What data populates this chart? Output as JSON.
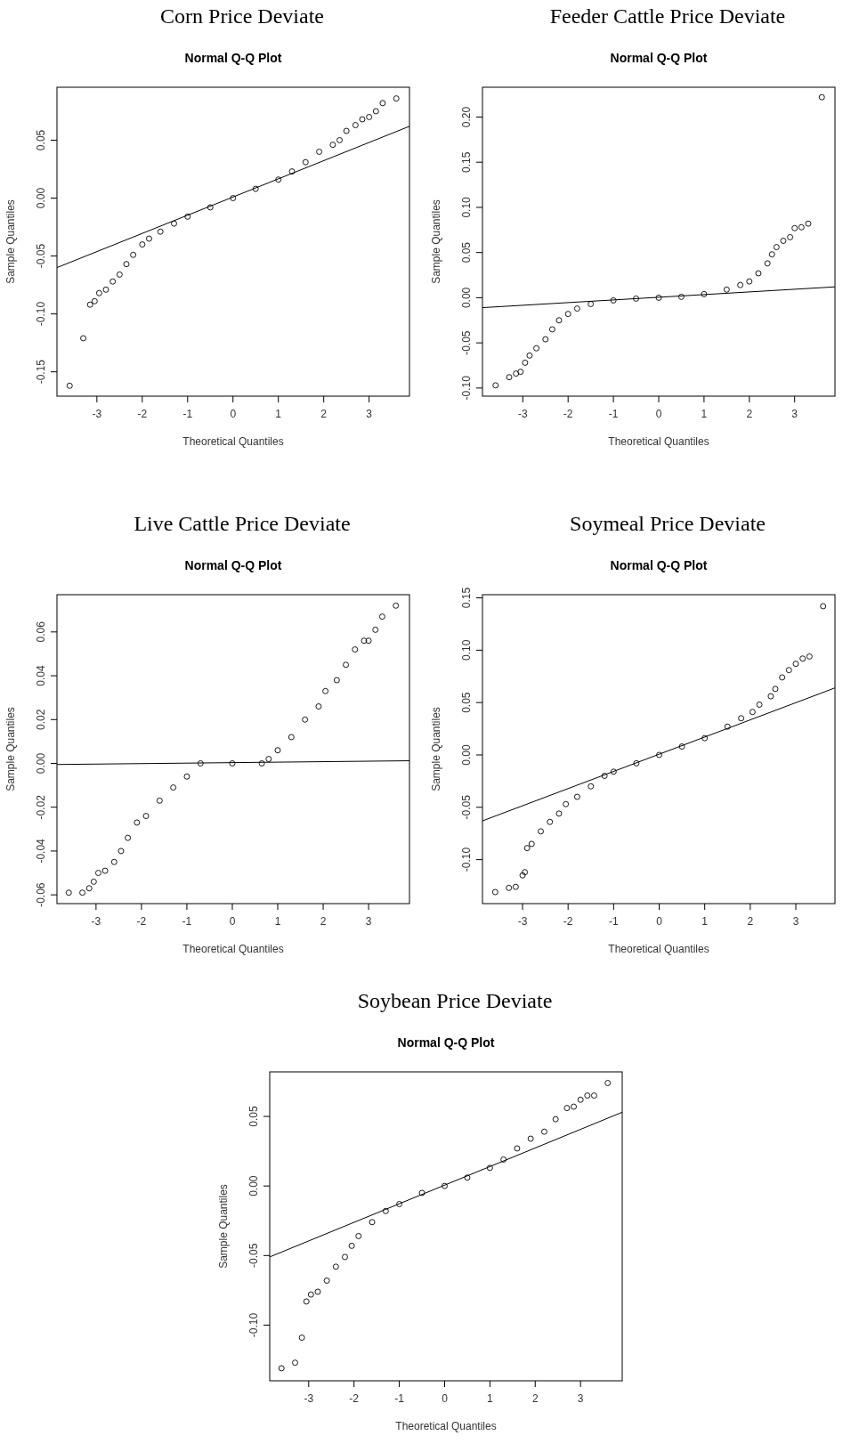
{
  "chart_data": [
    {
      "type": "scatter",
      "title": "Corn Price Deviate",
      "subtitle": "Normal Q-Q Plot",
      "xlabel": "Theoretical Quantiles",
      "ylabel": "Sample Quantiles",
      "xlim": [
        -3.88,
        3.89
      ],
      "ylim": [
        -0.171,
        0.0957
      ],
      "xticks": [
        -3,
        -2,
        -1,
        0,
        1,
        2,
        3
      ],
      "yticks": [
        {
          "value": -0.15,
          "label": "-0.15"
        },
        {
          "value": -0.1,
          "label": "-0.10"
        },
        {
          "value": -0.05,
          "label": "-0.05"
        },
        {
          "value": 0,
          "label": "0.00"
        },
        {
          "value": 0.05,
          "label": "0.05"
        }
      ],
      "series": [
        {
          "marker": "circle",
          "color": "#000000",
          "x": [
            -3.6,
            -3.3,
            -3.15,
            -3.05,
            -2.95,
            -2.8,
            -2.65,
            -2.5,
            -2.35,
            -2.2,
            -2.0,
            -1.85,
            -1.6,
            -1.3,
            -1,
            -0.5,
            0,
            0.5,
            1,
            1.3,
            1.6,
            1.9,
            2.2,
            2.35,
            2.5,
            2.7,
            2.85,
            3.0,
            3.15,
            3.3,
            3.6
          ],
          "values": [
            -0.162,
            -0.121,
            -0.092,
            -0.089,
            -0.082,
            -0.079,
            -0.072,
            -0.066,
            -0.057,
            -0.049,
            -0.04,
            -0.035,
            -0.029,
            -0.022,
            -0.016,
            -0.008,
            0,
            0.008,
            0.016,
            0.023,
            0.031,
            0.04,
            0.046,
            0.05,
            0.058,
            0.063,
            0.068,
            0.07,
            0.075,
            0.082,
            0.086
          ]
        },
        {
          "type": "line",
          "color": "#000000",
          "x": [
            -3.88,
            3.89
          ],
          "values": [
            -0.06,
            0.062
          ]
        }
      ]
    },
    {
      "type": "scatter",
      "title": "Feeder Cattle Price Deviate",
      "subtitle": "Normal Q-Q Plot",
      "xlabel": "Theoretical Quantiles",
      "ylabel": "Sample Quantiles",
      "xlim": [
        -3.89,
        3.89
      ],
      "ylim": [
        -0.109,
        0.233
      ],
      "xticks": [
        -3,
        -2,
        -1,
        0,
        1,
        2,
        3
      ],
      "yticks": [
        {
          "value": -0.1,
          "label": "-0.10"
        },
        {
          "value": -0.05,
          "label": "-0.05"
        },
        {
          "value": 0,
          "label": "0.00"
        },
        {
          "value": 0.05,
          "label": "0.05"
        },
        {
          "value": 0.1,
          "label": "0.10"
        },
        {
          "value": 0.15,
          "label": "0.15"
        },
        {
          "value": 0.2,
          "label": "0.20"
        }
      ],
      "series": [
        {
          "marker": "circle",
          "color": "#000000",
          "x": [
            -3.6,
            -3.3,
            -3.15,
            -3.05,
            -2.95,
            -2.85,
            -2.7,
            -2.5,
            -2.35,
            -2.2,
            -2,
            -1.8,
            -1.5,
            -1,
            -0.5,
            0,
            0.5,
            1,
            1.5,
            1.8,
            2,
            2.2,
            2.4,
            2.5,
            2.6,
            2.75,
            2.9,
            3.0,
            3.15,
            3.3,
            3.6
          ],
          "values": [
            -0.097,
            -0.088,
            -0.084,
            -0.082,
            -0.072,
            -0.064,
            -0.056,
            -0.046,
            -0.035,
            -0.025,
            -0.018,
            -0.012,
            -0.007,
            -0.003,
            -0.001,
            0,
            0.001,
            0.004,
            0.009,
            0.014,
            0.018,
            0.027,
            0.038,
            0.048,
            0.056,
            0.063,
            0.067,
            0.077,
            0.078,
            0.082,
            0.222
          ]
        },
        {
          "type": "line",
          "color": "#000000",
          "x": [
            -3.89,
            3.89
          ],
          "values": [
            -0.011,
            0.012
          ]
        }
      ]
    },
    {
      "type": "scatter",
      "title": "Live Cattle Price Deviate",
      "subtitle": "Normal Q-Q Plot",
      "xlabel": "Theoretical Quantiles",
      "ylabel": "Sample Quantiles",
      "xlim": [
        -3.86,
        3.9
      ],
      "ylim": [
        -0.064,
        0.077
      ],
      "xticks": [
        -3,
        -2,
        -1,
        0,
        1,
        2,
        3
      ],
      "yticks": [
        {
          "value": -0.06,
          "label": "-0.06"
        },
        {
          "value": -0.04,
          "label": "-0.04"
        },
        {
          "value": -0.02,
          "label": "-0.02"
        },
        {
          "value": 0,
          "label": "0.00"
        },
        {
          "value": 0.02,
          "label": "0.02"
        },
        {
          "value": 0.04,
          "label": "0.04"
        },
        {
          "value": 0.06,
          "label": "0.06"
        }
      ],
      "series": [
        {
          "marker": "circle",
          "color": "#000000",
          "x": [
            -3.6,
            -3.3,
            -3.15,
            -3.05,
            -2.95,
            -2.8,
            -2.6,
            -2.45,
            -2.3,
            -2.1,
            -1.9,
            -1.6,
            -1.3,
            -1,
            -0.7,
            0,
            0.65,
            0.8,
            1,
            1.3,
            1.6,
            1.9,
            2.05,
            2.3,
            2.5,
            2.7,
            2.9,
            3.0,
            3.15,
            3.3,
            3.6
          ],
          "values": [
            -0.059,
            -0.059,
            -0.057,
            -0.054,
            -0.05,
            -0.049,
            -0.045,
            -0.04,
            -0.034,
            -0.027,
            -0.024,
            -0.017,
            -0.011,
            -0.006,
            0,
            0,
            0,
            0.002,
            0.006,
            0.012,
            0.02,
            0.026,
            0.033,
            0.038,
            0.045,
            0.052,
            0.056,
            0.056,
            0.061,
            0.067,
            0.072
          ]
        },
        {
          "type": "line",
          "color": "#000000",
          "x": [
            -3.86,
            3.9
          ],
          "values": [
            -0.0005,
            0.0012
          ]
        }
      ]
    },
    {
      "type": "scatter",
      "title": "Soymeal Price Deviate",
      "subtitle": "Normal Q-Q Plot",
      "xlabel": "Theoretical Quantiles",
      "ylabel": "Sample Quantiles",
      "xlim": [
        -3.88,
        3.86
      ],
      "ylim": [
        -0.142,
        0.153
      ],
      "xticks": [
        -3,
        -2,
        -1,
        0,
        1,
        2,
        3
      ],
      "yticks": [
        {
          "value": -0.1,
          "label": "-0.10"
        },
        {
          "value": -0.05,
          "label": "-0.05"
        },
        {
          "value": 0,
          "label": "0.00"
        },
        {
          "value": 0.05,
          "label": "0.05"
        },
        {
          "value": 0.1,
          "label": "0.10"
        },
        {
          "value": 0.15,
          "label": "0.15"
        }
      ],
      "series": [
        {
          "marker": "circle",
          "color": "#000000",
          "x": [
            -3.6,
            -3.3,
            -3.15,
            -3.0,
            -2.95,
            -2.9,
            -2.8,
            -2.6,
            -2.4,
            -2.2,
            -2.05,
            -1.8,
            -1.5,
            -1.2,
            -1,
            -0.5,
            0,
            0.5,
            1,
            1.5,
            1.8,
            2.05,
            2.2,
            2.45,
            2.55,
            2.7,
            2.85,
            3.0,
            3.15,
            3.3,
            3.6
          ],
          "values": [
            -0.131,
            -0.127,
            -0.126,
            -0.115,
            -0.112,
            -0.089,
            -0.085,
            -0.073,
            -0.064,
            -0.056,
            -0.047,
            -0.04,
            -0.03,
            -0.02,
            -0.016,
            -0.008,
            0,
            0.008,
            0.016,
            0.027,
            0.035,
            0.041,
            0.048,
            0.056,
            0.063,
            0.074,
            0.081,
            0.087,
            0.092,
            0.094,
            0.142
          ]
        },
        {
          "type": "line",
          "color": "#000000",
          "x": [
            -3.88,
            3.86
          ],
          "values": [
            -0.063,
            0.064
          ]
        }
      ]
    },
    {
      "type": "scatter",
      "title": "Soybean Price Deviate",
      "subtitle": "Normal Q-Q Plot",
      "xlabel": "Theoretical Quantiles",
      "ylabel": "Sample Quantiles",
      "xlim": [
        -3.86,
        3.92
      ],
      "ylim": [
        -0.14,
        0.082
      ],
      "xticks": [
        -3,
        -2,
        -1,
        0,
        1,
        2,
        3
      ],
      "yticks": [
        {
          "value": -0.1,
          "label": "-0.10"
        },
        {
          "value": -0.05,
          "label": "-0.05"
        },
        {
          "value": 0,
          "label": "0.00"
        },
        {
          "value": 0.05,
          "label": "0.05"
        }
      ],
      "series": [
        {
          "marker": "circle",
          "color": "#000000",
          "x": [
            -3.6,
            -3.3,
            -3.15,
            -3.05,
            -2.95,
            -2.8,
            -2.6,
            -2.4,
            -2.2,
            -2.05,
            -1.9,
            -1.6,
            -1.3,
            -1,
            -0.5,
            0,
            0.5,
            1,
            1.3,
            1.6,
            1.9,
            2.2,
            2.45,
            2.7,
            2.85,
            3.0,
            3.15,
            3.3,
            3.6
          ],
          "values": [
            -0.131,
            -0.127,
            -0.109,
            -0.083,
            -0.078,
            -0.076,
            -0.068,
            -0.058,
            -0.051,
            -0.043,
            -0.036,
            -0.026,
            -0.018,
            -0.013,
            -0.005,
            0,
            0.006,
            0.013,
            0.019,
            0.027,
            0.034,
            0.039,
            0.048,
            0.056,
            0.057,
            0.062,
            0.065,
            0.065,
            0.074
          ]
        },
        {
          "type": "line",
          "color": "#000000",
          "x": [
            -3.86,
            3.92
          ],
          "values": [
            -0.051,
            0.053
          ]
        }
      ]
    }
  ]
}
